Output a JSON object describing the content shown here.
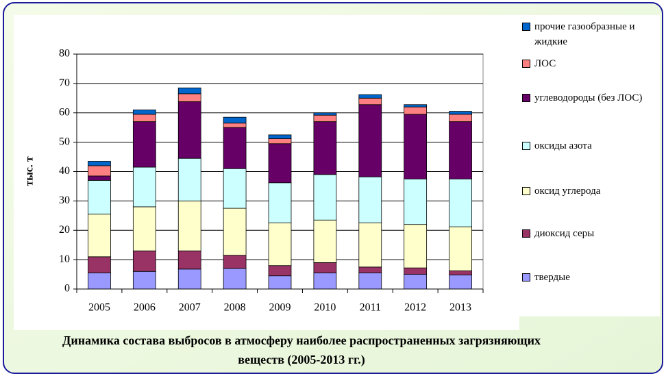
{
  "chart_data": {
    "type": "stacked_bar",
    "title": "Динамика состава выбросов в атмосферу наиболее распространенных загрязняющих веществ (2005-2013 гг.)",
    "y_label": "тыс. т",
    "categories": [
      "2005",
      "2006",
      "2007",
      "2008",
      "2009",
      "2010",
      "2011",
      "2012",
      "2013"
    ],
    "series": [
      {
        "name": "твердые",
        "color": "#9999ff",
        "values": [
          5.5,
          6,
          6.8,
          7,
          4.5,
          5.5,
          5.5,
          5,
          4.8
        ]
      },
      {
        "name": "диоксид серы",
        "color": "#993366",
        "values": [
          5.5,
          7,
          6.2,
          4.5,
          3.5,
          3.5,
          2,
          2.2,
          1.4
        ]
      },
      {
        "name": "оксид углерода",
        "color": "#ffffcc",
        "values": [
          14.5,
          15,
          17,
          16,
          14.5,
          14.5,
          15,
          14.8,
          15
        ]
      },
      {
        "name": "оксиды азота",
        "color": "#ccffff",
        "values": [
          11.5,
          13.5,
          14.5,
          13.5,
          13.7,
          15.5,
          15.7,
          15.5,
          16.3
        ]
      },
      {
        "name": "углеводороды (без ЛОС)",
        "color": "#660066",
        "values": [
          1.5,
          15.5,
          19.3,
          14,
          13.3,
          18,
          24.6,
          22,
          19.5
        ]
      },
      {
        "name": "ЛОС",
        "color": "#ff8080",
        "values": [
          3.5,
          2.5,
          2.7,
          1.5,
          1.7,
          2.2,
          2.2,
          2.5,
          2.5
        ]
      },
      {
        "name": "прочие газообразные и жидкие",
        "color": "#0066cc",
        "values": [
          1.5,
          1.5,
          2,
          2,
          1.3,
          0.8,
          1.2,
          0.8,
          1
        ]
      }
    ],
    "ylim": [
      0,
      80
    ],
    "yticks": [
      0,
      10,
      20,
      30,
      40,
      50,
      60,
      70,
      80
    ],
    "grid": true,
    "legend": "right"
  }
}
